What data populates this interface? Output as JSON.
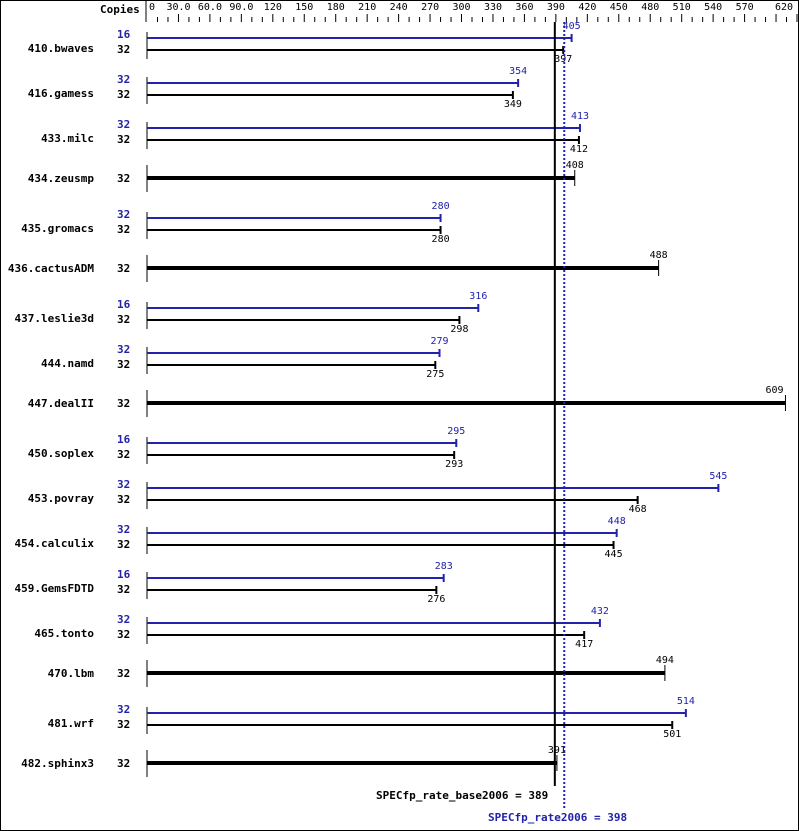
{
  "chart_data": {
    "type": "bar",
    "title": "",
    "xlabel": "",
    "ylabel": "",
    "column_header": "Copies",
    "axis_ticks": [
      "0",
      "30.0",
      "60.0",
      "90.0",
      "120",
      "150",
      "180",
      "210",
      "240",
      "270",
      "300",
      "330",
      "360",
      "390",
      "420",
      "450",
      "480",
      "510",
      "540",
      "570",
      "620"
    ],
    "xlim": [
      0,
      620
    ],
    "grid": false,
    "legend": [
      {
        "name": "SPECfp_rate_base2006",
        "color": "#000000"
      },
      {
        "name": "SPECfp_rate2006",
        "color": "#2222aa"
      }
    ],
    "categories": [
      "410.bwaves",
      "416.gamess",
      "433.milc",
      "434.zeusmp",
      "435.gromacs",
      "436.cactusADM",
      "437.leslie3d",
      "444.namd",
      "447.dealII",
      "450.soplex",
      "453.povray",
      "454.calculix",
      "459.GemsFDTD",
      "465.tonto",
      "470.lbm",
      "481.wrf",
      "482.sphinx3"
    ],
    "series": [
      {
        "name": "peak",
        "color": "#2222aa",
        "copies": [
          16,
          32,
          32,
          null,
          32,
          null,
          16,
          32,
          null,
          16,
          32,
          32,
          16,
          32,
          null,
          32,
          null
        ],
        "values": [
          405,
          354,
          413,
          null,
          280,
          null,
          316,
          279,
          null,
          295,
          545,
          448,
          283,
          432,
          null,
          514,
          null
        ]
      },
      {
        "name": "base",
        "color": "#000000",
        "copies": [
          32,
          32,
          32,
          32,
          32,
          32,
          32,
          32,
          32,
          32,
          32,
          32,
          32,
          32,
          32,
          32,
          32
        ],
        "values": [
          397,
          349,
          412,
          408,
          280,
          488,
          298,
          275,
          609,
          293,
          468,
          445,
          276,
          417,
          494,
          501,
          391
        ]
      }
    ],
    "annotations": [
      {
        "text": "SPECfp_rate_base2006 = 389",
        "value": 389,
        "color": "#000000"
      },
      {
        "text": "SPECfp_rate2006 = 398",
        "value": 398,
        "color": "#2222aa"
      }
    ]
  },
  "summary": {
    "base_label": "SPECfp_rate_base2006 = 389",
    "peak_label": "SPECfp_rate2006 = 398"
  },
  "colors": {
    "base": "#000000",
    "peak": "#2222aa"
  }
}
